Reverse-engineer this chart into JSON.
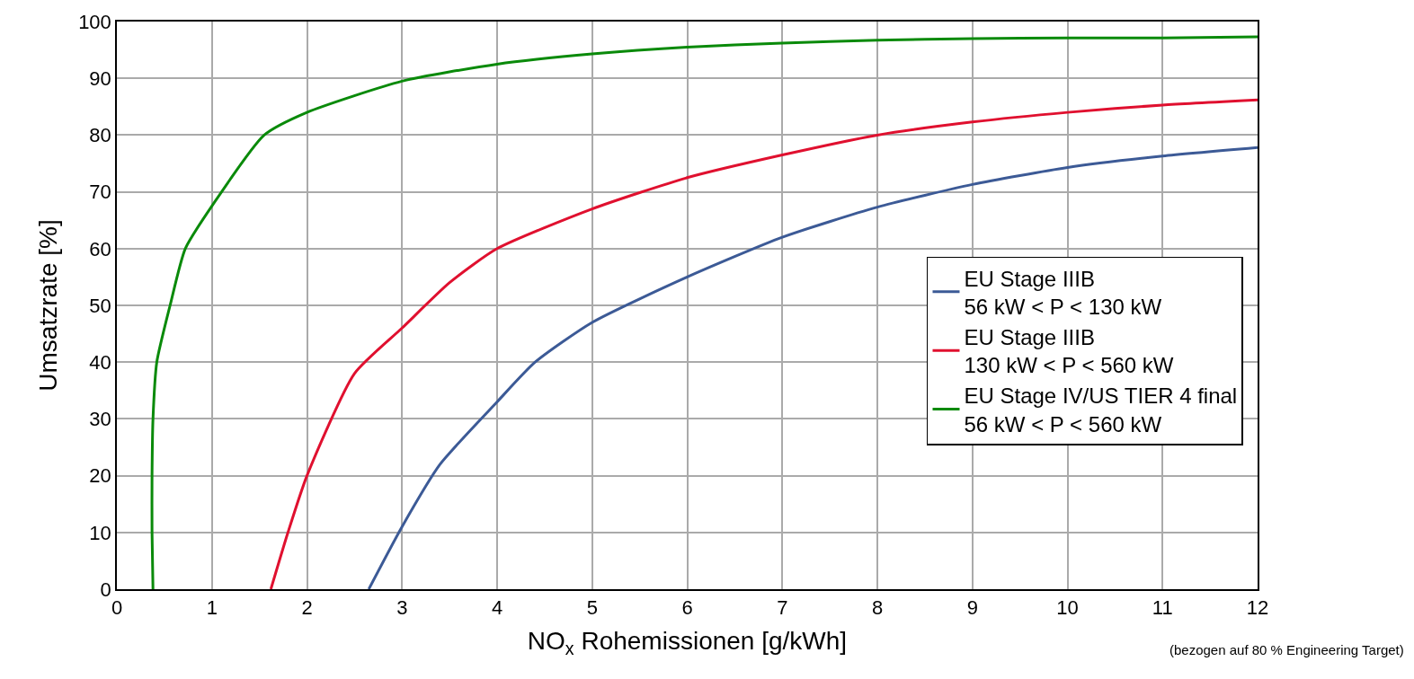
{
  "chart_data": {
    "type": "line",
    "xlabel": "NO$_{x}$ Rohemissionen [g/kWh]",
    "ylabel": "Umsatzrate [%]",
    "xlim": [
      0,
      12
    ],
    "xticks": [
      0,
      1,
      2,
      3,
      4,
      5,
      6,
      7,
      8,
      9,
      10,
      11,
      12
    ],
    "ylim": [
      0,
      100
    ],
    "yticks": [
      0,
      10,
      20,
      30,
      40,
      50,
      60,
      70,
      80,
      90,
      100
    ],
    "grid": true,
    "legend": "right",
    "marker": "none",
    "line_style": "solid",
    "annotations": [
      "(bezogen auf 80 % Engineering Target)"
    ],
    "series": [
      {
        "name": "EU Stage IIIB\n56 kW < P < 130 kW",
        "color": "#3c5a96",
        "x": [
          2.65,
          3,
          3.4,
          4,
          4.4,
          5,
          6,
          7,
          8,
          9,
          10,
          11,
          12
        ],
        "values": [
          0,
          11,
          22,
          33,
          40,
          47,
          55,
          62,
          67.3,
          71.3,
          74.3,
          76.3,
          77.8
        ]
      },
      {
        "name": "EU Stage IIIB\n130 kW < P < 560 kW",
        "color": "#e0102f",
        "x": [
          1.62,
          1.8,
          2,
          2.5,
          3,
          3.5,
          4,
          5,
          6,
          7,
          8,
          9,
          10,
          11,
          12
        ],
        "values": [
          0,
          10,
          20,
          38,
          46,
          54,
          60,
          67,
          72.5,
          76.5,
          80,
          82.3,
          84,
          85.3,
          86.2
        ]
      },
      {
        "name": "EU Stage IV/US TIER 4 final\n56 kW < P < 560 kW",
        "color": "#0a8a0a",
        "x": [
          0.38,
          0.37,
          0.37,
          0.38,
          0.42,
          0.56,
          0.72,
          1,
          1.55,
          2,
          3,
          4,
          5,
          6,
          7,
          8,
          9,
          10,
          11,
          12
        ],
        "values": [
          0,
          10,
          20,
          30,
          40,
          50,
          60,
          67.5,
          80,
          84,
          89.5,
          92.5,
          94.3,
          95.5,
          96.2,
          96.7,
          97,
          97.1,
          97.1,
          97.3
        ]
      }
    ]
  }
}
